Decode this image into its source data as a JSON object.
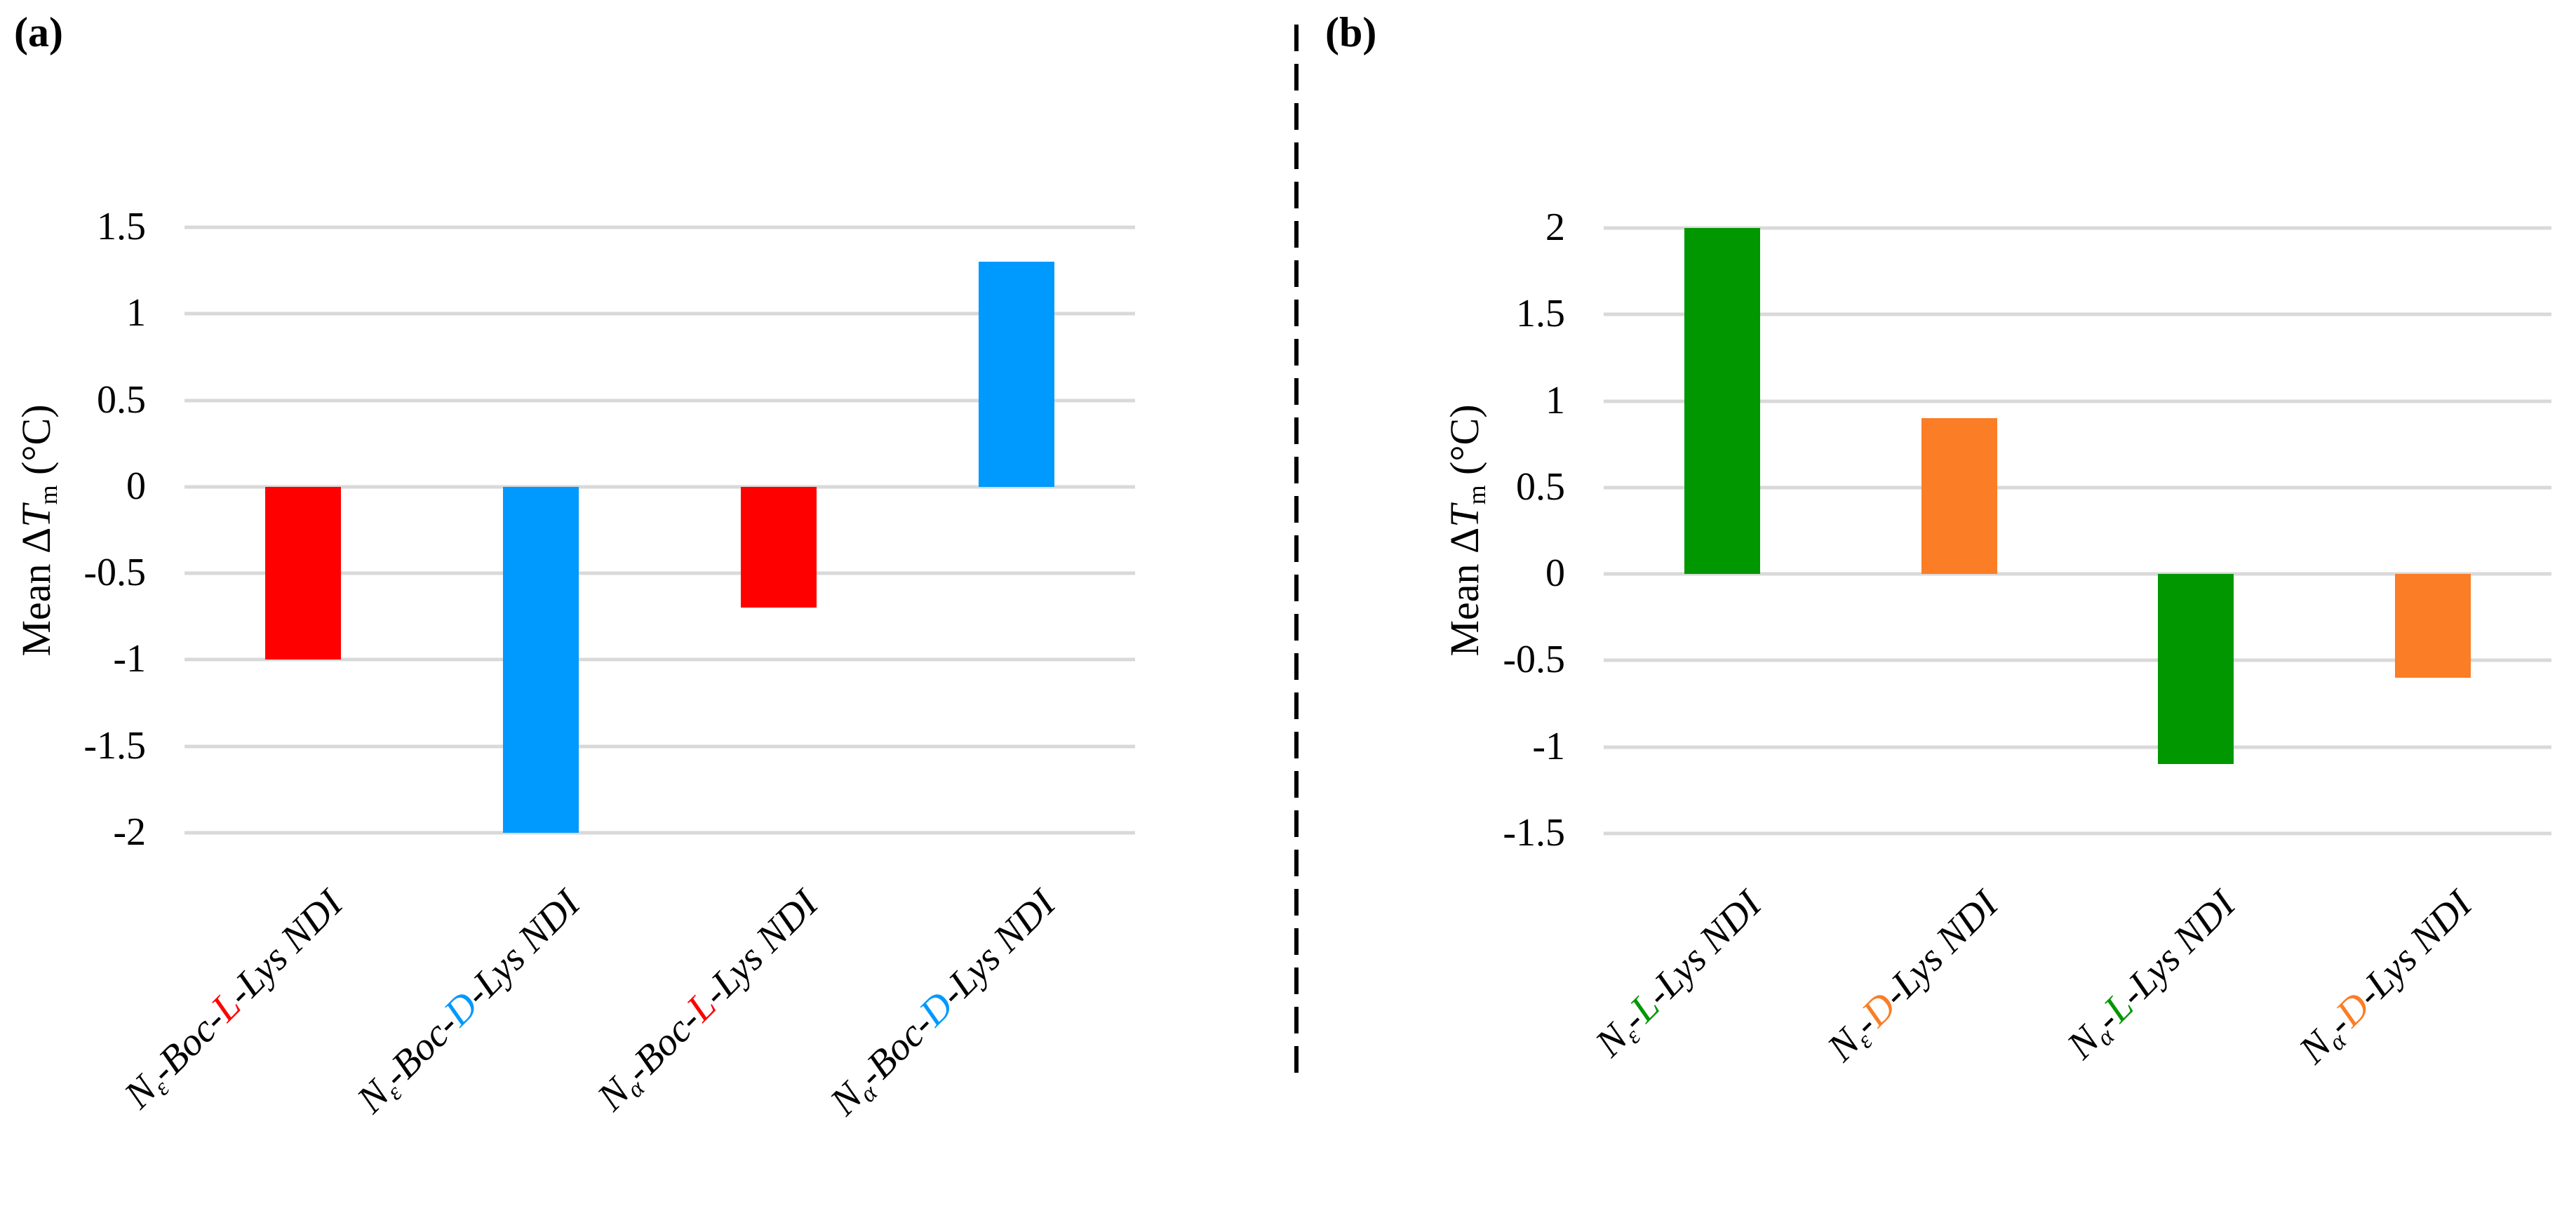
{
  "figure": {
    "background": "#FFFFFF",
    "divider_color": "#000000",
    "gridline_color": "#D9D9D9"
  },
  "chart_data": [
    {
      "id": "a",
      "panel_label": "(a)",
      "type": "bar",
      "ylabel": "Mean ΔTm (°C)",
      "ylabel_parts": [
        {
          "t": "Mean Δ"
        },
        {
          "t": "T",
          "italic": true
        },
        {
          "t": "m",
          "sub": true
        },
        {
          "t": " (°C)"
        }
      ],
      "ylim": [
        -2,
        1.5
      ],
      "grid": true,
      "legend": "none",
      "yticks": [
        {
          "label": "1.5",
          "value": 1.5
        },
        {
          "label": "1",
          "value": 1
        },
        {
          "label": "0.5",
          "value": 0.5
        },
        {
          "label": "0",
          "value": 0
        },
        {
          "label": "-0.5",
          "value": -0.5
        },
        {
          "label": "-1",
          "value": -1
        },
        {
          "label": "-1.5",
          "value": -1.5
        },
        {
          "label": "-2",
          "value": -2
        }
      ],
      "categories": [
        "Nε-Boc-L-Lys NDI",
        "Nε-Boc-D-Lys NDI",
        "Nα-Boc-L-Lys NDI",
        "Nα-Boc-D-Lys NDI"
      ],
      "category_parts": [
        [
          {
            "t": "N"
          },
          {
            "t": "ε",
            "sub": true
          },
          {
            "t": "-Boc-"
          },
          {
            "t": "L",
            "color": "#FF0000"
          },
          {
            "t": "-Lys NDI"
          }
        ],
        [
          {
            "t": "N"
          },
          {
            "t": "ε",
            "sub": true
          },
          {
            "t": "-Boc-"
          },
          {
            "t": "D",
            "color": "#0099FE"
          },
          {
            "t": "-Lys NDI"
          }
        ],
        [
          {
            "t": "N"
          },
          {
            "t": "α",
            "sub": true
          },
          {
            "t": "-Boc-"
          },
          {
            "t": "L",
            "color": "#FF0000"
          },
          {
            "t": "-Lys NDI"
          }
        ],
        [
          {
            "t": "N"
          },
          {
            "t": "α",
            "sub": true
          },
          {
            "t": "-Boc-"
          },
          {
            "t": "D",
            "color": "#0099FE"
          },
          {
            "t": "-Lys NDI"
          }
        ]
      ],
      "values": [
        -1.0,
        -2.0,
        -0.7,
        1.3
      ],
      "bar_colors": [
        "#FF0000",
        "#0099FE",
        "#FF0000",
        "#0099FE"
      ]
    },
    {
      "id": "b",
      "panel_label": "(b)",
      "type": "bar",
      "ylabel": "Mean ΔTm (°C)",
      "ylabel_parts": [
        {
          "t": "Mean Δ"
        },
        {
          "t": "T",
          "italic": true
        },
        {
          "t": "m",
          "sub": true
        },
        {
          "t": " (°C)"
        }
      ],
      "ylim": [
        -1.5,
        2
      ],
      "grid": true,
      "legend": "none",
      "yticks": [
        {
          "label": "2",
          "value": 2
        },
        {
          "label": "1.5",
          "value": 1.5
        },
        {
          "label": "1",
          "value": 1
        },
        {
          "label": "0.5",
          "value": 0.5
        },
        {
          "label": "0",
          "value": 0
        },
        {
          "label": "-0.5",
          "value": -0.5
        },
        {
          "label": "-1",
          "value": -1
        },
        {
          "label": "-1.5",
          "value": -1.5
        }
      ],
      "categories": [
        "Nε-L-Lys NDI",
        "Nε-D-Lys NDI",
        "Nα-L-Lys NDI",
        "Nα-D-Lys NDI"
      ],
      "category_parts": [
        [
          {
            "t": "N"
          },
          {
            "t": "ε",
            "sub": true
          },
          {
            "t": "-"
          },
          {
            "t": "L",
            "color": "#009700"
          },
          {
            "t": "-Lys NDI"
          }
        ],
        [
          {
            "t": "N"
          },
          {
            "t": "ε",
            "sub": true
          },
          {
            "t": "-"
          },
          {
            "t": "D",
            "color": "#FB7D26"
          },
          {
            "t": "-Lys NDI"
          }
        ],
        [
          {
            "t": "N"
          },
          {
            "t": "α",
            "sub": true
          },
          {
            "t": "-"
          },
          {
            "t": "L",
            "color": "#009700"
          },
          {
            "t": "-Lys NDI"
          }
        ],
        [
          {
            "t": "N"
          },
          {
            "t": "α",
            "sub": true
          },
          {
            "t": "-"
          },
          {
            "t": "D",
            "color": "#FB7D26"
          },
          {
            "t": "-Lys NDI"
          }
        ]
      ],
      "values": [
        2.0,
        0.9,
        -1.1,
        -0.6
      ],
      "bar_colors": [
        "#009700",
        "#FB7D26",
        "#009700",
        "#FB7D26"
      ]
    }
  ]
}
